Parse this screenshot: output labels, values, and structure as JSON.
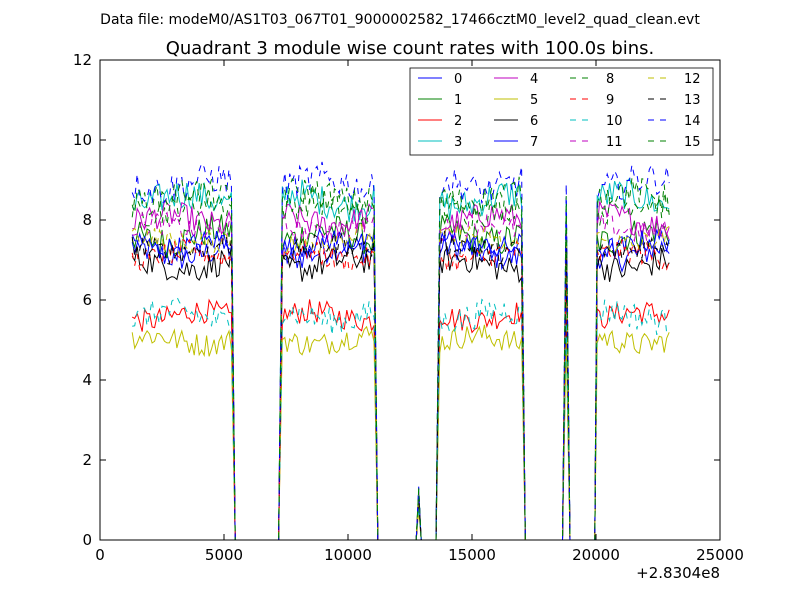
{
  "figure": {
    "suptitle": "Data file: modeM0/AS1T03_067T01_9000002582_17466cztM0_level2_quad_clean.evt"
  },
  "chart_data": {
    "type": "line",
    "title": "Quadrant 3 module wise count rates with 100.0s bins.",
    "xlabel": "",
    "ylabel": "",
    "x_offset_label": "+2.8304e8",
    "xlim": [
      0,
      25000
    ],
    "ylim": [
      0,
      12
    ],
    "x_ticks": [
      0,
      5000,
      10000,
      15000,
      20000,
      25000
    ],
    "x_tick_labels": [
      "0",
      "5000",
      "10000",
      "15000",
      "20000",
      "25000"
    ],
    "y_ticks": [
      0,
      2,
      4,
      6,
      8,
      10,
      12
    ],
    "y_tick_labels": [
      "0",
      "2",
      "4",
      "6",
      "8",
      "10",
      "12"
    ],
    "grid": false,
    "legend_position": "top-right",
    "legend_columns": 4,
    "segments": [
      {
        "start": 1300,
        "end": 5350,
        "kind": "data"
      },
      {
        "start": 5350,
        "end": 5450,
        "kind": "edge"
      },
      {
        "start": 5450,
        "end": 7200,
        "kind": "zero"
      },
      {
        "start": 7200,
        "end": 7350,
        "kind": "edge"
      },
      {
        "start": 7350,
        "end": 11100,
        "kind": "data"
      },
      {
        "start": 11100,
        "end": 11200,
        "kind": "edge"
      },
      {
        "start": 11200,
        "end": 12750,
        "kind": "zero"
      },
      {
        "start": 12750,
        "end": 12950,
        "kind": "spike",
        "peak_scale": 0.15
      },
      {
        "start": 12950,
        "end": 13550,
        "kind": "zero"
      },
      {
        "start": 13550,
        "end": 13700,
        "kind": "edge"
      },
      {
        "start": 13700,
        "end": 17000,
        "kind": "data"
      },
      {
        "start": 17000,
        "end": 17150,
        "kind": "edge"
      },
      {
        "start": 17150,
        "end": 18650,
        "kind": "zero"
      },
      {
        "start": 18650,
        "end": 18950,
        "kind": "spike",
        "peak_scale": 1.0
      },
      {
        "start": 18950,
        "end": 19950,
        "kind": "zero"
      },
      {
        "start": 19950,
        "end": 20050,
        "kind": "edge"
      },
      {
        "start": 20050,
        "end": 22950,
        "kind": "data"
      }
    ],
    "series": [
      {
        "name": "0",
        "color": "#0000ff",
        "dash": "solid",
        "mean": 7.2,
        "amp": 0.35
      },
      {
        "name": "1",
        "color": "#008000",
        "dash": "solid",
        "mean": 7.6,
        "amp": 0.4
      },
      {
        "name": "2",
        "color": "#ff0000",
        "dash": "solid",
        "mean": 5.6,
        "amp": 0.3
      },
      {
        "name": "3",
        "color": "#00bfbf",
        "dash": "solid",
        "mean": 8.5,
        "amp": 0.4
      },
      {
        "name": "4",
        "color": "#bf00bf",
        "dash": "solid",
        "mean": 8.0,
        "amp": 0.35
      },
      {
        "name": "5",
        "color": "#bfbf00",
        "dash": "solid",
        "mean": 5.0,
        "amp": 0.3
      },
      {
        "name": "6",
        "color": "#000000",
        "dash": "solid",
        "mean": 6.9,
        "amp": 0.35
      },
      {
        "name": "7",
        "color": "#0000ff",
        "dash": "solid",
        "mean": 7.4,
        "amp": 0.3
      },
      {
        "name": "8",
        "color": "#008000",
        "dash": "dashed",
        "mean": 8.3,
        "amp": 0.35
      },
      {
        "name": "9",
        "color": "#ff0000",
        "dash": "dashed",
        "mean": 7.1,
        "amp": 0.3
      },
      {
        "name": "10",
        "color": "#00bfbf",
        "dash": "dashed",
        "mean": 5.6,
        "amp": 0.35
      },
      {
        "name": "11",
        "color": "#bf00bf",
        "dash": "dashed",
        "mean": 7.8,
        "amp": 0.3
      },
      {
        "name": "12",
        "color": "#bfbf00",
        "dash": "dashed",
        "mean": 7.5,
        "amp": 0.3
      },
      {
        "name": "13",
        "color": "#000000",
        "dash": "dashed",
        "mean": 7.3,
        "amp": 0.3
      },
      {
        "name": "14",
        "color": "#0000ff",
        "dash": "dashed",
        "mean": 8.9,
        "amp": 0.4
      },
      {
        "name": "15",
        "color": "#008000",
        "dash": "dashed",
        "mean": 8.6,
        "amp": 0.35
      }
    ]
  }
}
